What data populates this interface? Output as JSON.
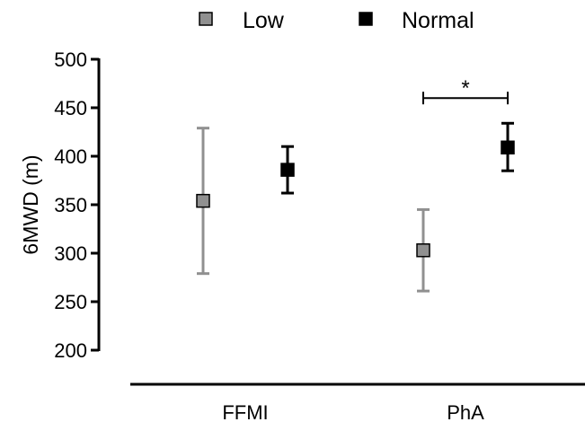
{
  "chart_data": {
    "type": "scatter",
    "title": "",
    "xlabel": "",
    "ylabel": "6MWD  (m)",
    "ylim": [
      200,
      500
    ],
    "yticks": [
      200,
      250,
      300,
      350,
      400,
      450,
      500
    ],
    "categories": [
      "FFMI",
      "PhA"
    ],
    "legend_position": "top",
    "grid": false,
    "series": [
      {
        "name": "Low",
        "color": "#909090",
        "marker": "square",
        "points": [
          {
            "category": "FFMI",
            "y": 354,
            "lower": 279,
            "upper": 429
          },
          {
            "category": "PhA",
            "y": 303,
            "lower": 261,
            "upper": 345
          }
        ]
      },
      {
        "name": "Normal",
        "color": "#000000",
        "marker": "square",
        "points": [
          {
            "category": "FFMI",
            "y": 386,
            "lower": 362,
            "upper": 410
          },
          {
            "category": "PhA",
            "y": 409,
            "lower": 385,
            "upper": 434
          }
        ]
      }
    ],
    "annotations": [
      {
        "text": "*",
        "category": "PhA",
        "between": [
          "Low",
          "Normal"
        ],
        "level": 460
      }
    ]
  }
}
